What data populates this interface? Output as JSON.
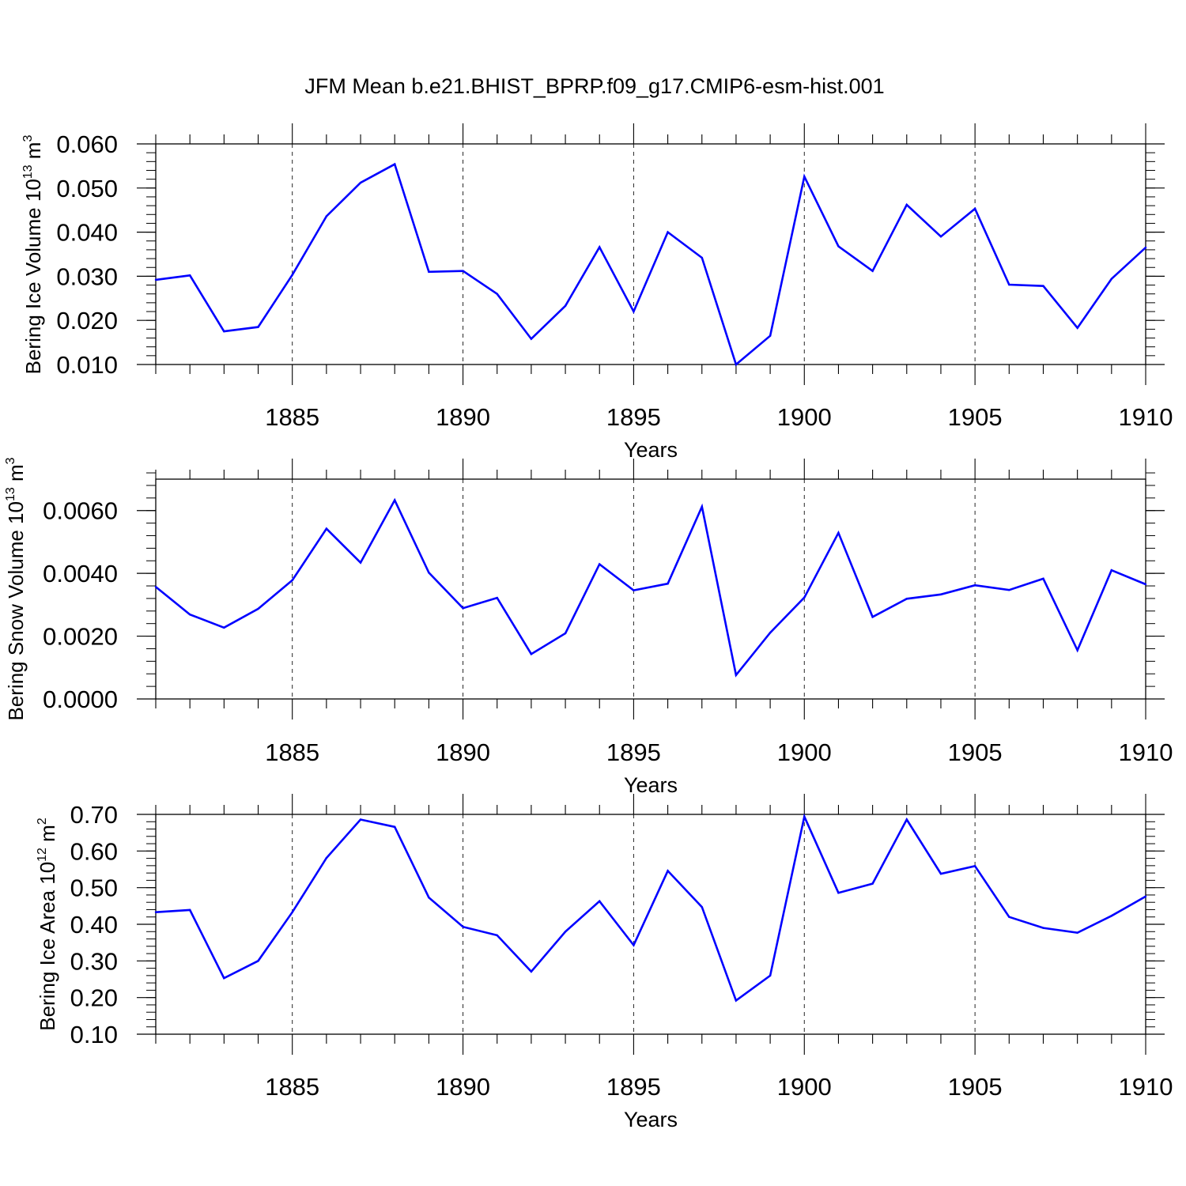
{
  "title": "JFM Mean b.e21.BHIST_BPRP.f09_g17.CMIP6-esm-hist.001",
  "colors": {
    "line": "#0000ff",
    "axis": "#000000",
    "grid": "#000000",
    "background": "#ffffff"
  },
  "chart_data": [
    {
      "type": "line",
      "ylabel_text": "Bering Ice Volume 10",
      "ylabel_exp": "13",
      "ylabel_unit": "m",
      "ylabel_unit_exp": "3",
      "xlabel": "Years",
      "xlim": [
        1881,
        1910
      ],
      "ylim": [
        0.01,
        0.06
      ],
      "yticks": [
        0.01,
        0.02,
        0.03,
        0.04,
        0.05,
        0.06
      ],
      "yticklabels": [
        "0.010",
        "0.020",
        "0.030",
        "0.040",
        "0.050",
        "0.060"
      ],
      "yminor_step": 0.002,
      "xticks": [
        1885,
        1890,
        1895,
        1900,
        1905,
        1910
      ],
      "xticklabels": [
        "1885",
        "1890",
        "1895",
        "1900",
        "1905",
        "1910"
      ],
      "grid": "vertical dashed at major x ticks",
      "series": [
        {
          "name": "Bering Ice Volume",
          "x": [
            1881,
            1882,
            1883,
            1884,
            1885,
            1886,
            1887,
            1888,
            1889,
            1890,
            1891,
            1892,
            1893,
            1894,
            1895,
            1896,
            1897,
            1898,
            1899,
            1900,
            1901,
            1902,
            1903,
            1904,
            1905,
            1906,
            1907,
            1908,
            1909,
            1910
          ],
          "values": [
            0.0292,
            0.0302,
            0.0175,
            0.0185,
            0.0303,
            0.0436,
            0.0512,
            0.0554,
            0.031,
            0.0312,
            0.026,
            0.0158,
            0.0233,
            0.0366,
            0.022,
            0.04,
            0.0342,
            0.01,
            0.0165,
            0.0526,
            0.0368,
            0.0312,
            0.0462,
            0.039,
            0.0453,
            0.0281,
            0.0278,
            0.0183,
            0.0294,
            0.0365
          ]
        }
      ]
    },
    {
      "type": "line",
      "ylabel_text": "Bering Snow Volume 10",
      "ylabel_exp": "13",
      "ylabel_unit": "m",
      "ylabel_unit_exp": "3",
      "xlabel": "Years",
      "xlim": [
        1881,
        1910
      ],
      "ylim": [
        0.0,
        0.007
      ],
      "yticks": [
        0.0,
        0.002,
        0.004,
        0.006
      ],
      "yticklabels": [
        "0.0000",
        "0.0020",
        "0.0040",
        "0.0060"
      ],
      "yminor_step": 0.0004,
      "xticks": [
        1885,
        1890,
        1895,
        1900,
        1905,
        1910
      ],
      "xticklabels": [
        "1885",
        "1890",
        "1895",
        "1900",
        "1905",
        "1910"
      ],
      "grid": "vertical dashed at major x ticks",
      "series": [
        {
          "name": "Bering Snow Volume",
          "x": [
            1881,
            1882,
            1883,
            1884,
            1885,
            1886,
            1887,
            1888,
            1889,
            1890,
            1891,
            1892,
            1893,
            1894,
            1895,
            1896,
            1897,
            1898,
            1899,
            1900,
            1901,
            1902,
            1903,
            1904,
            1905,
            1906,
            1907,
            1908,
            1909,
            1910
          ],
          "values": [
            0.00357,
            0.00269,
            0.00227,
            0.00287,
            0.00378,
            0.00542,
            0.00434,
            0.00633,
            0.00402,
            0.00289,
            0.00322,
            0.00143,
            0.00209,
            0.00429,
            0.00346,
            0.00367,
            0.00612,
            0.00076,
            0.00211,
            0.00323,
            0.00529,
            0.00261,
            0.00319,
            0.00333,
            0.00362,
            0.00347,
            0.00383,
            0.00155,
            0.0041,
            0.00365
          ]
        }
      ]
    },
    {
      "type": "line",
      "ylabel_text": "Bering Ice Area 10",
      "ylabel_exp": "12",
      "ylabel_unit": "m",
      "ylabel_unit_exp": "2",
      "xlabel": "Years",
      "xlim": [
        1881,
        1910
      ],
      "ylim": [
        0.1,
        0.7
      ],
      "yticks": [
        0.1,
        0.2,
        0.3,
        0.4,
        0.5,
        0.6,
        0.7
      ],
      "yticklabels": [
        "0.10",
        "0.20",
        "0.30",
        "0.40",
        "0.50",
        "0.60",
        "0.70"
      ],
      "yminor_step": 0.02,
      "xticks": [
        1885,
        1890,
        1895,
        1900,
        1905,
        1910
      ],
      "xticklabels": [
        "1885",
        "1890",
        "1895",
        "1900",
        "1905",
        "1910"
      ],
      "grid": "vertical dashed at major x ticks",
      "series": [
        {
          "name": "Bering Ice Area",
          "x": [
            1881,
            1882,
            1883,
            1884,
            1885,
            1886,
            1887,
            1888,
            1889,
            1890,
            1891,
            1892,
            1893,
            1894,
            1895,
            1896,
            1897,
            1898,
            1899,
            1900,
            1901,
            1902,
            1903,
            1904,
            1905,
            1906,
            1907,
            1908,
            1909,
            1910
          ],
          "values": [
            0.433,
            0.439,
            0.253,
            0.3,
            0.433,
            0.581,
            0.686,
            0.666,
            0.473,
            0.393,
            0.37,
            0.271,
            0.38,
            0.463,
            0.343,
            0.546,
            0.447,
            0.192,
            0.26,
            0.694,
            0.486,
            0.511,
            0.686,
            0.538,
            0.559,
            0.42,
            0.39,
            0.377,
            0.423,
            0.476
          ]
        }
      ]
    }
  ]
}
